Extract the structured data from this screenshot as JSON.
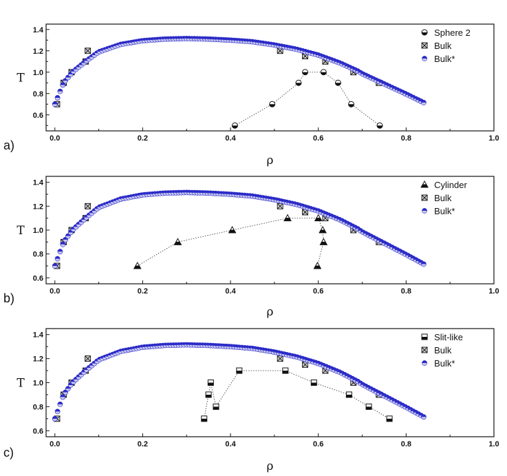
{
  "chart_data": [
    {
      "type": "scatter",
      "panel_label": "a)",
      "xlabel": "ρ",
      "ylabel": "T",
      "xlim": [
        -0.02,
        1.0
      ],
      "ylim": [
        0.45,
        1.45
      ],
      "xticks": [
        "0.0",
        "0.2",
        "0.4",
        "0.6",
        "0.8",
        "1.0"
      ],
      "yticks": [
        "0.6",
        "0.8",
        "1.0",
        "1.2",
        "1.4"
      ],
      "legend_position": "top-right",
      "series": [
        {
          "name": "Sphere 2",
          "marker": "half-circle",
          "dotted_line": true,
          "x": [
            0.41,
            0.495,
            0.555,
            0.57,
            0.612,
            0.645,
            0.675,
            0.74
          ],
          "y": [
            0.5,
            0.7,
            0.9,
            1.0,
            1.0,
            0.9,
            0.7,
            0.5
          ]
        },
        {
          "name": "Bulk",
          "marker": "boxed-x",
          "x": [
            0.005,
            0.02,
            0.038,
            0.07,
            0.075,
            0.513,
            0.57,
            0.616,
            0.68,
            0.738
          ],
          "y": [
            0.7,
            0.9,
            1.0,
            1.1,
            1.2,
            1.2,
            1.15,
            1.1,
            1.0,
            0.9
          ]
        },
        {
          "name": "Bulk*",
          "marker": "blue-circle",
          "curve": true,
          "x": [
            0.0,
            0.01,
            0.02,
            0.04,
            0.07,
            0.1,
            0.15,
            0.2,
            0.25,
            0.3,
            0.35,
            0.4,
            0.45,
            0.5,
            0.55,
            0.6,
            0.65,
            0.69,
            0.7,
            0.75,
            0.8,
            0.845
          ],
          "y": [
            0.7,
            0.8,
            0.9,
            1.0,
            1.1,
            1.19,
            1.26,
            1.295,
            1.31,
            1.315,
            1.31,
            1.3,
            1.285,
            1.255,
            1.215,
            1.16,
            1.085,
            1.01,
            0.985,
            0.89,
            0.795,
            0.705
          ]
        }
      ]
    },
    {
      "type": "scatter",
      "panel_label": "b)",
      "xlabel": "ρ",
      "ylabel": "T",
      "xlim": [
        -0.02,
        1.0
      ],
      "ylim": [
        0.55,
        1.45
      ],
      "xticks": [
        "0.0",
        "0.2",
        "0.4",
        "0.6",
        "0.8",
        "1.0"
      ],
      "yticks": [
        "0.6",
        "0.8",
        "1.0",
        "1.2",
        "1.4"
      ],
      "legend_position": "top-right",
      "series": [
        {
          "name": "Cylinder",
          "marker": "triangle",
          "dotted_line": true,
          "x": [
            0.188,
            0.28,
            0.404,
            0.53,
            0.6,
            0.61,
            0.612,
            0.598
          ],
          "y": [
            0.7,
            0.9,
            1.0,
            1.1,
            1.1,
            1.0,
            0.9,
            0.7
          ]
        },
        {
          "name": "Bulk",
          "marker": "boxed-x",
          "x": [
            0.005,
            0.02,
            0.038,
            0.07,
            0.075,
            0.513,
            0.57,
            0.616,
            0.68,
            0.738
          ],
          "y": [
            0.7,
            0.9,
            1.0,
            1.1,
            1.2,
            1.2,
            1.15,
            1.1,
            1.0,
            0.9
          ]
        },
        {
          "name": "Bulk*",
          "marker": "blue-circle",
          "curve": true,
          "x": [
            0.0,
            0.01,
            0.02,
            0.04,
            0.07,
            0.1,
            0.15,
            0.2,
            0.25,
            0.3,
            0.35,
            0.4,
            0.45,
            0.5,
            0.55,
            0.6,
            0.65,
            0.69,
            0.7,
            0.75,
            0.8,
            0.845
          ],
          "y": [
            0.7,
            0.8,
            0.9,
            1.0,
            1.1,
            1.19,
            1.26,
            1.295,
            1.31,
            1.315,
            1.31,
            1.3,
            1.285,
            1.255,
            1.215,
            1.16,
            1.085,
            1.01,
            0.985,
            0.89,
            0.795,
            0.705
          ]
        }
      ]
    },
    {
      "type": "scatter",
      "panel_label": "c)",
      "xlabel": "ρ",
      "ylabel": "T",
      "xlim": [
        -0.02,
        1.0
      ],
      "ylim": [
        0.55,
        1.45
      ],
      "xticks": [
        "0.0",
        "0.2",
        "0.4",
        "0.6",
        "0.8",
        "1.0"
      ],
      "yticks": [
        "0.6",
        "0.8",
        "1.0",
        "1.2",
        "1.4"
      ],
      "legend_position": "top-right",
      "series": [
        {
          "name": "Slit-like",
          "marker": "half-square",
          "dotted_line": true,
          "x": [
            0.34,
            0.35,
            0.355,
            0.367,
            0.42,
            0.525,
            0.59,
            0.67,
            0.715,
            0.762
          ],
          "y": [
            0.7,
            0.9,
            1.0,
            0.8,
            1.1,
            1.1,
            1.0,
            0.9,
            0.8,
            0.7
          ]
        },
        {
          "name": "Bulk",
          "marker": "boxed-x",
          "x": [
            0.005,
            0.02,
            0.038,
            0.07,
            0.075,
            0.513,
            0.57,
            0.616,
            0.68,
            0.738
          ],
          "y": [
            0.7,
            0.9,
            1.0,
            1.1,
            1.2,
            1.2,
            1.15,
            1.1,
            1.0,
            0.9
          ]
        },
        {
          "name": "Bulk*",
          "marker": "blue-circle",
          "curve": true,
          "x": [
            0.0,
            0.01,
            0.02,
            0.04,
            0.07,
            0.1,
            0.15,
            0.2,
            0.25,
            0.3,
            0.35,
            0.4,
            0.45,
            0.5,
            0.55,
            0.6,
            0.65,
            0.69,
            0.7,
            0.75,
            0.8,
            0.845
          ],
          "y": [
            0.7,
            0.8,
            0.9,
            1.0,
            1.1,
            1.19,
            1.26,
            1.295,
            1.31,
            1.315,
            1.31,
            1.3,
            1.285,
            1.255,
            1.215,
            1.16,
            1.085,
            1.01,
            0.985,
            0.89,
            0.795,
            0.705
          ]
        }
      ]
    }
  ],
  "colors": {
    "bulk_star_fill": "#2b2bc8",
    "bulk_star_light": "#c8c8f0",
    "marker_dark": "#111111",
    "bulk_box_fill": "#d0d0d0",
    "axis": "#111111"
  }
}
